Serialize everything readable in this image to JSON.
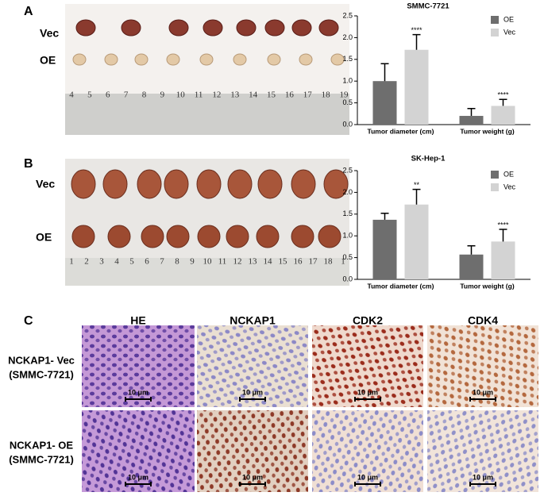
{
  "panels": {
    "A": {
      "label": "A",
      "rows": [
        "Vec",
        "OE"
      ],
      "ruler": [
        "4",
        "5",
        "6",
        "7",
        "8",
        "9",
        "10",
        "11",
        "12",
        "13",
        "14",
        "15",
        "16",
        "17",
        "18",
        "19"
      ]
    },
    "B": {
      "label": "B",
      "rows": [
        "Vec",
        "OE"
      ],
      "ruler": [
        "1",
        "2",
        "3",
        "4",
        "5",
        "6",
        "7",
        "8",
        "9",
        "10",
        "11",
        "12",
        "13",
        "14",
        "15",
        "16",
        "17",
        "18",
        "1"
      ]
    },
    "C": {
      "label": "C",
      "columns": [
        "HE",
        "NCKAP1",
        "CDK2",
        "CDK4"
      ],
      "rows": [
        [
          "NCKAP1- Vec",
          "(SMMC-7721)"
        ],
        [
          "NCKAP1- OE",
          "(SMMC-7721)"
        ]
      ],
      "scale_bars": [
        [
          "10 μm",
          "10 μm",
          "10 μm",
          "10 μm"
        ],
        [
          "10 μm",
          "10 μm",
          "10 μm",
          "10 μm"
        ]
      ]
    }
  },
  "chart_data": [
    {
      "type": "bar",
      "title": "SMMC-7721",
      "categories": [
        "Tumor diameter (cm)",
        "Tumor weight (g)"
      ],
      "series": [
        {
          "name": "OE",
          "color": "#6e6e6e",
          "values": [
            1.0,
            0.2
          ],
          "errors": [
            0.4,
            0.17
          ]
        },
        {
          "name": "Vec",
          "color": "#d3d3d3",
          "values": [
            1.72,
            0.43
          ],
          "errors": [
            0.35,
            0.15
          ],
          "annotations": [
            "****",
            "****"
          ]
        }
      ],
      "ylim": [
        0,
        2.5
      ],
      "yticks": [
        {
          "value": 0,
          "label": "0.0"
        },
        0.5,
        {
          "value": 1,
          "label": "1.0"
        },
        1.5,
        {
          "value": 2,
          "label": "2.0"
        },
        2.5
      ],
      "legend": "top-right"
    },
    {
      "type": "bar",
      "title": "SK-Hep-1",
      "categories": [
        "Tumor diameter (cm)",
        "Tumor weight (g)"
      ],
      "series": [
        {
          "name": "OE",
          "color": "#6e6e6e",
          "values": [
            1.37,
            0.57
          ],
          "errors": [
            0.15,
            0.2
          ]
        },
        {
          "name": "Vec",
          "color": "#d3d3d3",
          "values": [
            1.72,
            0.87
          ],
          "errors": [
            0.35,
            0.28
          ],
          "annotations": [
            "**",
            "****"
          ]
        }
      ],
      "ylim": [
        0,
        2.5
      ],
      "yticks": [
        {
          "value": 0,
          "label": "0.0"
        },
        0.5,
        {
          "value": 1,
          "label": "1.0"
        },
        1.5,
        {
          "value": 2,
          "label": "2.0"
        },
        2.5
      ],
      "legend": "top-right"
    }
  ]
}
